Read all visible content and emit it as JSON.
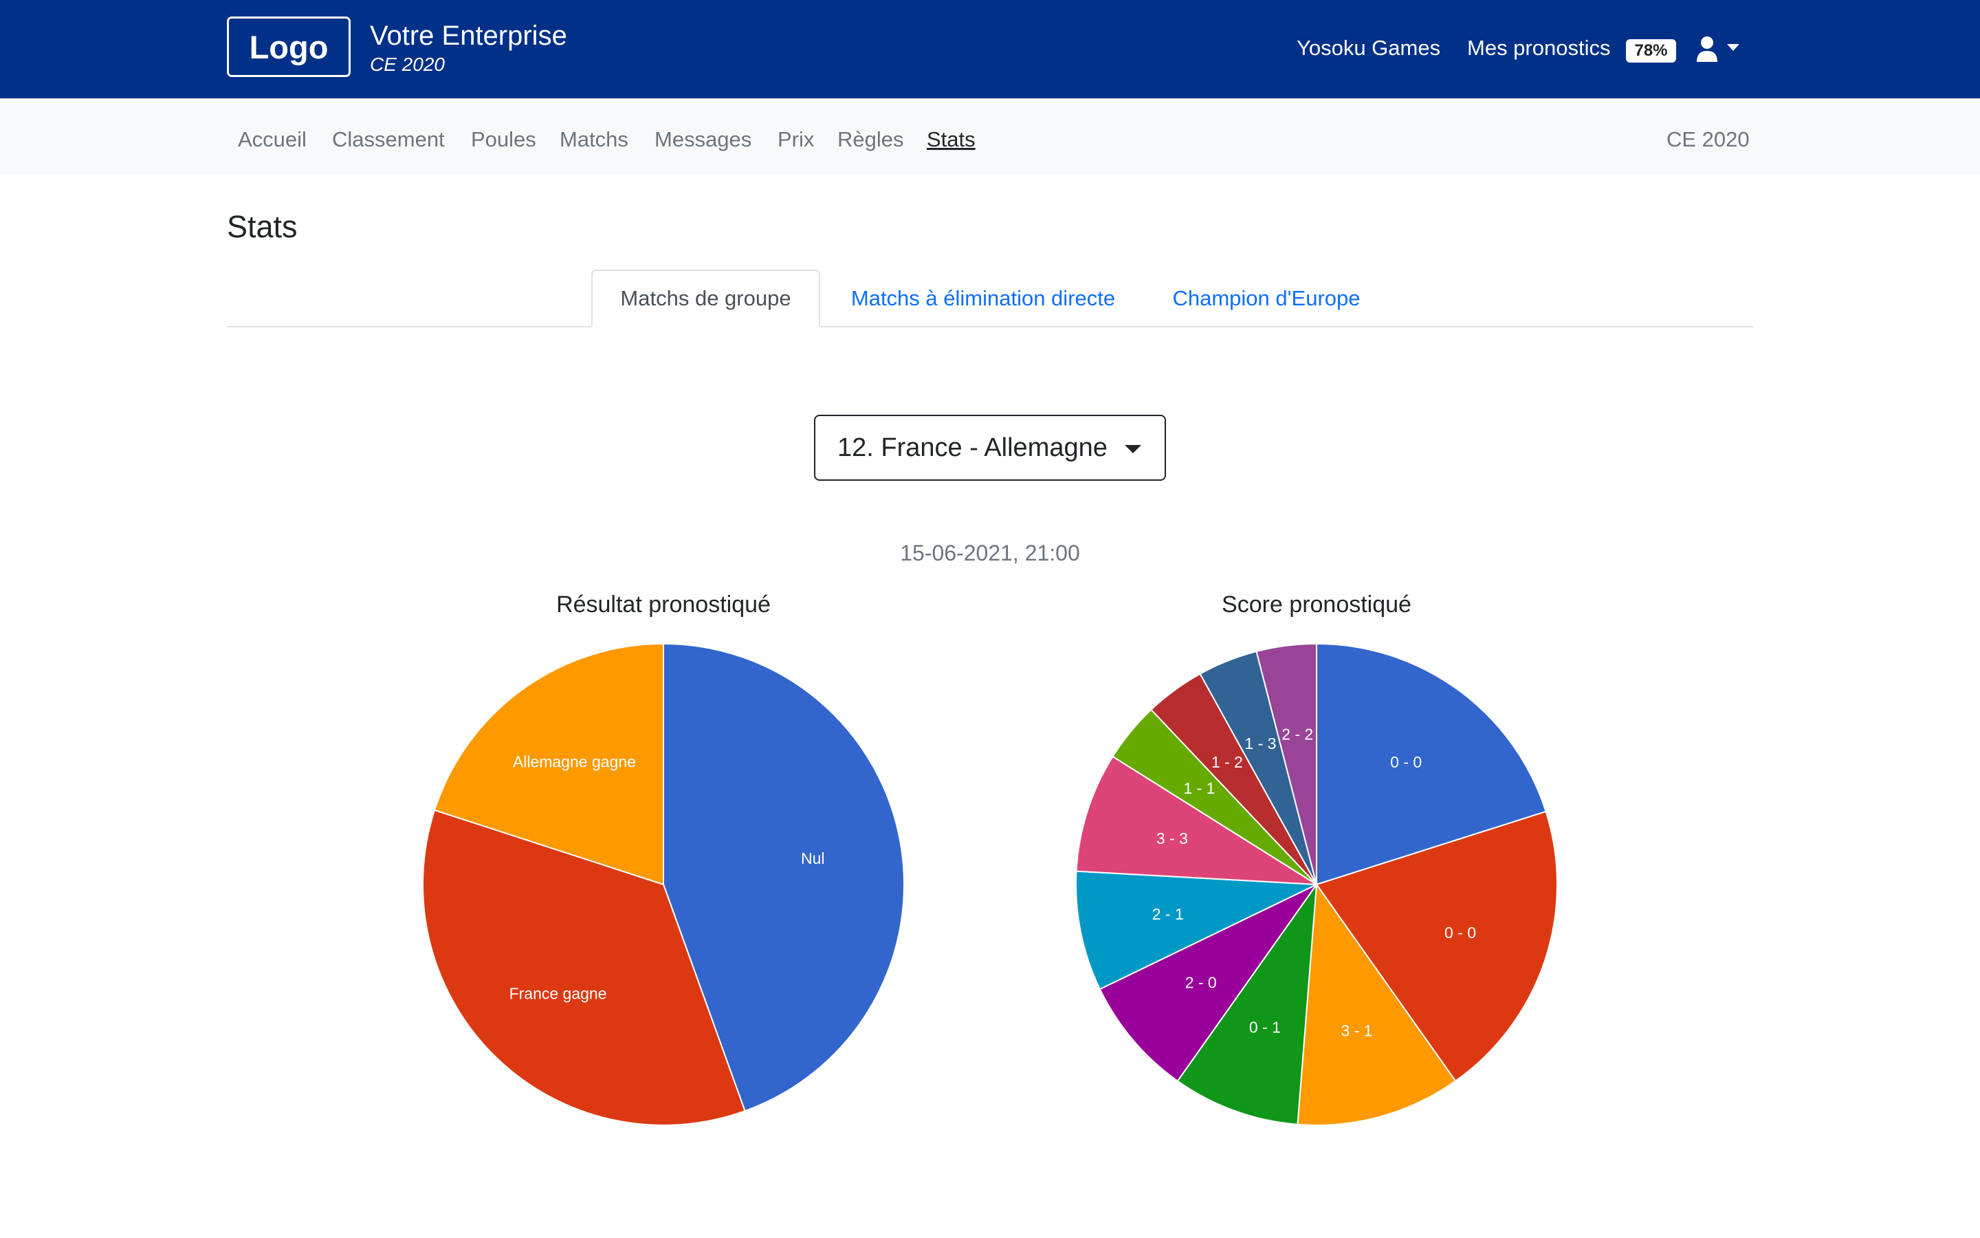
{
  "brand": {
    "logo": "Logo",
    "company": "Votre Enterprise",
    "competition": "CE 2020"
  },
  "topnav": {
    "games": "Yosoku Games",
    "predictions": "Mes pronostics",
    "predictions_badge": "78%",
    "user_icon": "user-icon"
  },
  "nav": {
    "items": [
      "Accueil",
      "Classement",
      "Poules",
      "Matchs",
      "Messages",
      "Prix",
      "Règles",
      "Stats"
    ],
    "active": "Stats",
    "right": "CE 2020"
  },
  "page": {
    "title": "Stats",
    "tabs": [
      "Matchs de groupe",
      "Matchs à élimination directe",
      "Champion d'Europe"
    ],
    "active_tab": "Matchs de groupe",
    "match_select": "12. France - Allemagne",
    "match_date": "15-06-2021, 21:00"
  },
  "chart_data": [
    {
      "type": "pie",
      "title": "Résultat pronostiqué",
      "labels": [
        "Nul",
        "France gagne",
        "Allemagne gagne"
      ],
      "values": [
        44.5,
        35.5,
        20
      ],
      "colors": [
        "#3366cc",
        "#dc3912",
        "#ff9900"
      ]
    },
    {
      "type": "pie",
      "title": "Score pronostiqué",
      "labels": [
        "0 - 0",
        "0 - 0",
        "3 - 1",
        "0 - 1",
        "2 - 0",
        "2 - 1",
        "3 - 3",
        "1 - 1",
        "1 - 2",
        "1 - 3",
        "2 - 2"
      ],
      "values": [
        20,
        20,
        11,
        8.5,
        8,
        8,
        8,
        4,
        4,
        4,
        4
      ],
      "colors": [
        "#3366cc",
        "#dc3912",
        "#ff9900",
        "#109618",
        "#990099",
        "#0099c6",
        "#dd4477",
        "#66aa00",
        "#b82e2e",
        "#316395",
        "#994499"
      ]
    }
  ]
}
